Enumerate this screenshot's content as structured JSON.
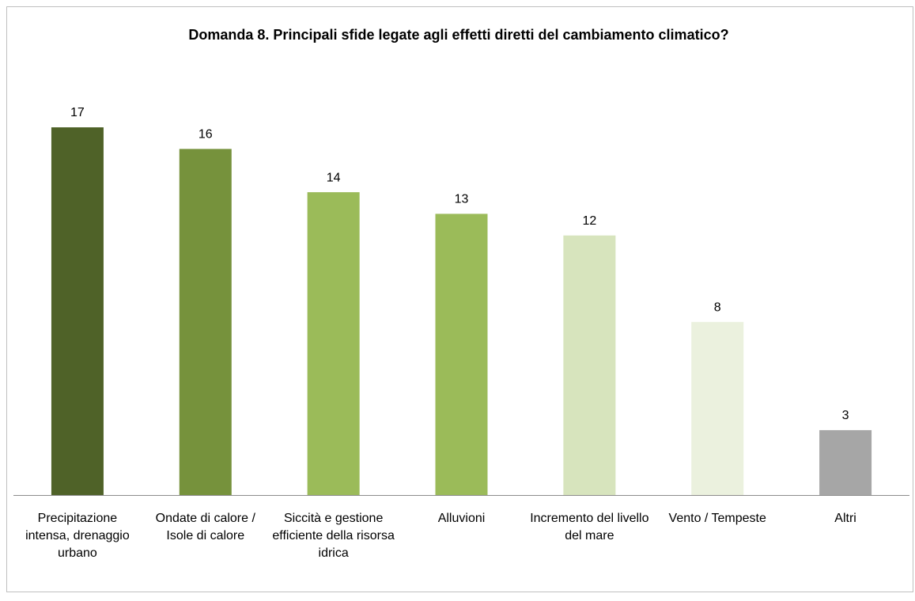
{
  "chart_data": {
    "type": "bar",
    "title": "Domanda 8. Principali sfide legate agli effetti diretti del cambiamento climatico?",
    "categories": [
      "Precipitazione intensa, drenaggio urbano",
      "Ondate di calore / Isole di calore",
      "Siccità e gestione efficiente della risorsa idrica",
      "Alluvioni",
      "Incremento del livello del mare",
      "Vento / Tempeste",
      "Altri"
    ],
    "values": [
      17,
      16,
      14,
      13,
      12,
      8,
      3
    ],
    "colors": [
      "#4f6228",
      "#76923c",
      "#9bbb59",
      "#9bbb59",
      "#d7e4bd",
      "#ebf1de",
      "#a6a6a6"
    ]
  }
}
